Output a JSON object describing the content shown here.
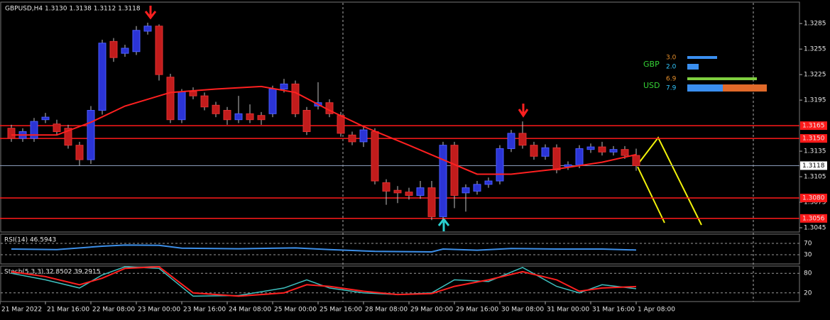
{
  "chart_data": {
    "type": "candlestick",
    "title": "GBPUSD,H4  1.3130 1.3138 1.3112 1.3118",
    "open": [
      1.3162,
      1.315,
      1.315,
      1.3172,
      1.3167,
      1.3162,
      1.3142,
      1.3125,
      1.3183,
      1.3264,
      1.325,
      1.3252,
      1.3276,
      1.3282,
      1.3222,
      1.3172,
      1.3205,
      1.32,
      1.3189,
      1.3183,
      1.3172,
      1.3179,
      1.3177,
      1.3179,
      1.3208,
      1.3214,
      1.3183,
      1.3188,
      1.3192,
      1.3177,
      1.3154,
      1.3146,
      1.3158,
      1.3098,
      1.3089,
      1.3087,
      1.3083,
      1.3092,
      1.3058,
      1.3142,
      1.3086,
      1.3088,
      1.3096,
      1.31,
      1.3138,
      1.3156,
      1.3142,
      1.3129,
      1.3139,
      1.3117,
      1.3119,
      1.3137,
      1.314,
      1.3134,
      1.3137,
      1.313
    ],
    "high": [
      1.3166,
      1.3162,
      1.3174,
      1.318,
      1.3172,
      1.3166,
      1.3146,
      1.3188,
      1.3266,
      1.3268,
      1.326,
      1.3282,
      1.3286,
      1.3284,
      1.3226,
      1.3208,
      1.321,
      1.3204,
      1.3193,
      1.3187,
      1.32,
      1.319,
      1.3181,
      1.3212,
      1.322,
      1.3218,
      1.3187,
      1.3216,
      1.3196,
      1.3181,
      1.3158,
      1.3164,
      1.3162,
      1.3102,
      1.3094,
      1.3092,
      1.31,
      1.31,
      1.3146,
      1.3146,
      1.3096,
      1.31,
      1.3104,
      1.3142,
      1.316,
      1.317,
      1.3146,
      1.3143,
      1.3143,
      1.3123,
      1.3142,
      1.3144,
      1.3146,
      1.3141,
      1.3141,
      1.3138
    ],
    "low": [
      1.3146,
      1.3146,
      1.3146,
      1.3168,
      1.3154,
      1.3138,
      1.3118,
      1.312,
      1.3178,
      1.324,
      1.3246,
      1.3248,
      1.3272,
      1.3218,
      1.3168,
      1.3168,
      1.3196,
      1.3183,
      1.3175,
      1.3166,
      1.3168,
      1.3168,
      1.3166,
      1.3175,
      1.3204,
      1.3175,
      1.3154,
      1.3184,
      1.3175,
      1.3152,
      1.3142,
      1.314,
      1.3096,
      1.3072,
      1.3074,
      1.3078,
      1.3079,
      1.3054,
      1.3054,
      1.3068,
      1.3064,
      1.3084,
      1.3092,
      1.3096,
      1.3134,
      1.3138,
      1.3125,
      1.3125,
      1.3109,
      1.3113,
      1.3115,
      1.3133,
      1.313,
      1.313,
      1.3126,
      1.3112
    ],
    "close": [
      1.315,
      1.3158,
      1.317,
      1.3175,
      1.3158,
      1.3142,
      1.3125,
      1.3183,
      1.3262,
      1.3245,
      1.3256,
      1.3277,
      1.3282,
      1.3225,
      1.3172,
      1.3205,
      1.32,
      1.3187,
      1.3179,
      1.3172,
      1.3179,
      1.3172,
      1.3172,
      1.3208,
      1.3214,
      1.3179,
      1.3158,
      1.3192,
      1.3179,
      1.3156,
      1.3146,
      1.316,
      1.31,
      1.3088,
      1.3086,
      1.3083,
      1.3092,
      1.3058,
      1.3142,
      1.3083,
      1.3092,
      1.3096,
      1.31,
      1.3138,
      1.3156,
      1.3142,
      1.3129,
      1.3139,
      1.3113,
      1.3119,
      1.3138,
      1.314,
      1.3134,
      1.3137,
      1.313,
      1.3118
    ],
    "up_color": "#2b34d6",
    "down_color": "#c21c1c",
    "wick_color": "#bfbfbf",
    "ylim": [
      1.304,
      1.3306
    ],
    "yticks": [
      1.3285,
      1.3255,
      1.3225,
      1.3195,
      1.3135,
      1.3105,
      1.3075,
      1.3045
    ],
    "levels": [
      1.3165,
      {
        "value": 1.315,
        "label": "1.3150"
      },
      {
        "value": 1.308,
        "label": "1.3080"
      },
      1.3056
    ],
    "level_color": "#ff1a1a",
    "current_price": 1.3118,
    "moving_average": {
      "color": "#ff2020",
      "x": [
        0,
        4,
        7,
        10,
        14,
        18,
        22,
        25,
        28,
        31,
        35,
        38,
        41,
        44,
        48,
        52,
        55
      ],
      "values": [
        1.3154,
        1.3154,
        1.3169,
        1.3188,
        1.3204,
        1.3208,
        1.3211,
        1.3204,
        1.3183,
        1.3164,
        1.3142,
        1.3125,
        1.3108,
        1.3108,
        1.3114,
        1.3122,
        1.3131
      ]
    },
    "xtick_labels": [
      "21 Mar 2022",
      "21 Mar 16:00",
      "22 Mar 08:00",
      "23 Mar 00:00",
      "23 Mar 16:00",
      "24 Mar 08:00",
      "25 Mar 00:00",
      "25 Mar 16:00",
      "28 Mar 08:00",
      "29 Mar 00:00",
      "29 Mar 16:00",
      "30 Mar 08:00",
      "31 Mar 00:00",
      "31 Mar 16:00",
      "1 Apr 08:00"
    ],
    "rsi": {
      "title": "RSI(14) 46.5943",
      "color": "#3d8fe8",
      "ylim": [
        0,
        100
      ],
      "yticks": [
        70,
        30
      ],
      "x": [
        0,
        4,
        8,
        10,
        13,
        15,
        20,
        25,
        28,
        32,
        37,
        38,
        41,
        44,
        48,
        52,
        55
      ],
      "values": [
        50,
        48,
        60,
        64,
        63,
        53,
        51,
        54,
        48,
        42,
        40,
        50,
        46,
        52,
        50,
        50,
        46.6
      ]
    },
    "stoch": {
      "title": "Stoch(5,3,3) 32.8502 39.2915",
      "ylim": [
        0,
        100
      ],
      "yticks": [
        80,
        20
      ],
      "x": [
        0,
        3,
        6,
        8,
        10,
        13,
        16,
        20,
        24,
        26,
        28,
        31,
        34,
        37,
        39,
        42,
        45,
        48,
        50,
        52,
        55
      ],
      "main": {
        "color": "#3fc1c0",
        "values": [
          80,
          60,
          35,
          75,
          100,
          95,
          10,
          12,
          35,
          60,
          35,
          20,
          15,
          20,
          60,
          55,
          98,
          40,
          20,
          45,
          32.85
        ]
      },
      "signal": {
        "color": "#ff2020",
        "values": [
          85,
          70,
          45,
          65,
          95,
          100,
          20,
          10,
          20,
          45,
          40,
          25,
          15,
          18,
          40,
          60,
          85,
          60,
          25,
          35,
          39.29
        ]
      }
    }
  },
  "strength": {
    "rows": [
      {
        "currency": "GBP",
        "values": [
          "3.0",
          "2.0"
        ]
      },
      {
        "currency": "USD",
        "values": [
          "6.9",
          "7.9"
        ]
      }
    ]
  }
}
